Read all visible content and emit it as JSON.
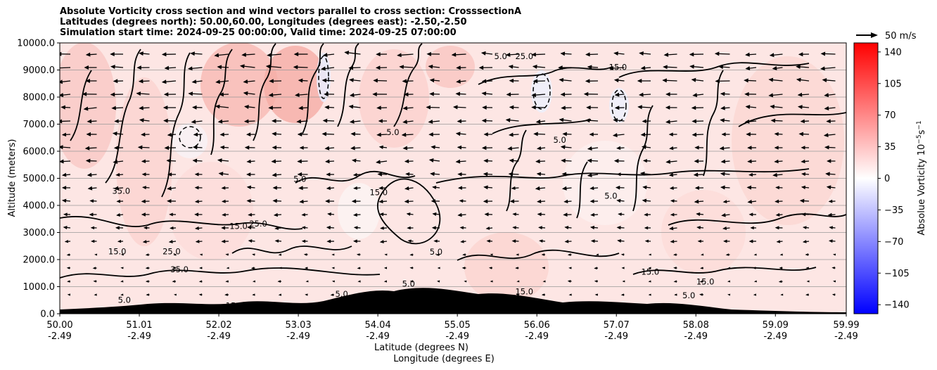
{
  "titles": [
    "Absolute Vorticity cross section and wind vectors parallel to cross section: CrosssectionA",
    "Latitudes (degrees north): 50.00,60.00, Longitudes (degrees east): -2.50,-2.50",
    "Simulation start time: 2024-09-25 00:00:00, Valid time: 2024-09-25 07:00:00"
  ],
  "quiver_key_label": "50 m/s",
  "chart_data": {
    "type": "heatmap",
    "description_free": true,
    "ylabel": "Altitude (meters)",
    "xlabel_lines": [
      "Latitude (degrees N)",
      "Longitude (degrees E)"
    ],
    "ylim": [
      0,
      10000
    ],
    "xlim": [
      50.0,
      59.99
    ],
    "yticks": [
      0,
      1000,
      2000,
      3000,
      4000,
      5000,
      6000,
      7000,
      8000,
      9000,
      10000
    ],
    "ytick_labels": [
      "0.0",
      "1000.0",
      "2000.0",
      "3000.0",
      "4000.0",
      "5000.0",
      "6000.0",
      "7000.0",
      "8000.0",
      "9000.0",
      "10000.0"
    ],
    "xticks": [
      {
        "lat": 50.0,
        "lat_label": "50.00",
        "lon_label": "-2.49"
      },
      {
        "lat": 51.01,
        "lat_label": "51.01",
        "lon_label": "-2.49"
      },
      {
        "lat": 52.02,
        "lat_label": "52.02",
        "lon_label": "-2.49"
      },
      {
        "lat": 53.03,
        "lat_label": "53.03",
        "lon_label": "-2.49"
      },
      {
        "lat": 54.04,
        "lat_label": "54.04",
        "lon_label": "-2.49"
      },
      {
        "lat": 55.05,
        "lat_label": "55.05",
        "lon_label": "-2.49"
      },
      {
        "lat": 56.06,
        "lat_label": "56.06",
        "lon_label": "-2.49"
      },
      {
        "lat": 57.07,
        "lat_label": "57.07",
        "lon_label": "-2.49"
      },
      {
        "lat": 58.08,
        "lat_label": "58.08",
        "lon_label": "-2.49"
      },
      {
        "lat": 59.09,
        "lat_label": "59.09",
        "lon_label": "-2.49"
      },
      {
        "lat": 59.99,
        "lat_label": "59.99",
        "lon_label": "-2.49"
      }
    ],
    "horizontal_grid": true,
    "colorbar": {
      "label": "Absolue Vorticity 10",
      "label_exponent": "−5",
      "label_unit": "s",
      "label_unit_exponent": "−1",
      "range": [
        -150,
        150
      ],
      "ticks": [
        140,
        105,
        70,
        35,
        0,
        -35,
        -70,
        -105,
        -140
      ],
      "tick_labels": [
        "140",
        "105",
        "70",
        "35",
        "0",
        "−35",
        "−70",
        "−105",
        "−140"
      ],
      "colormap": "bwr",
      "color_low": "#0000ff",
      "color_mid": "#ffffff",
      "color_high": "#ff0000"
    },
    "contour_labels": [
      {
        "text": "5.0",
        "lat": 56.35,
        "alt": 6420
      },
      {
        "text": "15.0",
        "lat": 57.09,
        "alt": 9100
      },
      {
        "text": "5.0",
        "lat": 55.6,
        "alt": 9510
      },
      {
        "text": "25.0",
        "lat": 55.9,
        "alt": 9510
      },
      {
        "text": "5.0",
        "lat": 53.05,
        "alt": 4980
      },
      {
        "text": "15.0",
        "lat": 54.05,
        "alt": 4480
      },
      {
        "text": "5.0",
        "lat": 57.0,
        "alt": 4350
      },
      {
        "text": "15.0",
        "lat": 52.27,
        "alt": 3230
      },
      {
        "text": "25.0",
        "lat": 52.52,
        "alt": 3330
      },
      {
        "text": "15.0",
        "lat": 50.73,
        "alt": 2300
      },
      {
        "text": "25.0",
        "lat": 51.42,
        "alt": 2300
      },
      {
        "text": "35.0",
        "lat": 51.52,
        "alt": 1640
      },
      {
        "text": "5.0",
        "lat": 54.23,
        "alt": 6700
      },
      {
        "text": "15.0",
        "lat": 57.5,
        "alt": 1550
      },
      {
        "text": "15.0",
        "lat": 58.2,
        "alt": 1180
      },
      {
        "text": "5.0",
        "lat": 54.43,
        "alt": 1100
      },
      {
        "text": "5.0",
        "lat": 53.58,
        "alt": 730
      },
      {
        "text": "15.0",
        "lat": 55.9,
        "alt": 820
      },
      {
        "text": "15.0",
        "lat": 52.22,
        "alt": 300
      },
      {
        "text": "5.0",
        "lat": 50.82,
        "alt": 510
      },
      {
        "text": "35.0",
        "lat": 50.78,
        "alt": 4530
      },
      {
        "text": "5.0",
        "lat": 54.78,
        "alt": 2280
      },
      {
        "text": "5.0",
        "lat": 57.99,
        "alt": 680
      }
    ]
  }
}
